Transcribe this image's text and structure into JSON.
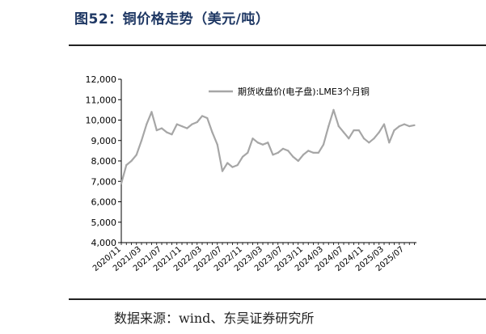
{
  "figure": {
    "title": "图52：铜价格走势（美元/吨）",
    "source": "数据来源：wind、东吴证券研究所"
  },
  "chart_data": {
    "type": "line",
    "title": "",
    "xlabel": "",
    "ylabel": "",
    "ylim": [
      4000,
      12000
    ],
    "yticks": [
      "4,000",
      "5,000",
      "6,000",
      "7,000",
      "8,000",
      "9,000",
      "10,000",
      "11,000",
      "12,000"
    ],
    "xticks": [
      "2020/11",
      "2021/03",
      "2021/07",
      "2021/11",
      "2022/03",
      "2022/07",
      "2022/11",
      "2023/03",
      "2023/07",
      "2023/11",
      "2024/03",
      "2024/07",
      "2024/11",
      "2025/03",
      "2025/07"
    ],
    "legend_position": "top",
    "grid": false,
    "series": [
      {
        "name": "期货收盘价(电子盘):LME3个月铜",
        "color": "#a6a6a6",
        "x": [
          "2020/11",
          "2020/12",
          "2021/01",
          "2021/02",
          "2021/03",
          "2021/04",
          "2021/05",
          "2021/06",
          "2021/07",
          "2021/08",
          "2021/09",
          "2021/10",
          "2021/11",
          "2021/12",
          "2022/01",
          "2022/02",
          "2022/03",
          "2022/04",
          "2022/05",
          "2022/06",
          "2022/07",
          "2022/08",
          "2022/09",
          "2022/10",
          "2022/11",
          "2022/12",
          "2023/01",
          "2023/02",
          "2023/03",
          "2023/04",
          "2023/05",
          "2023/06",
          "2023/07",
          "2023/08",
          "2023/09",
          "2023/10",
          "2023/11",
          "2023/12",
          "2024/01",
          "2024/02",
          "2024/03",
          "2024/04",
          "2024/05",
          "2024/06",
          "2024/07",
          "2024/08",
          "2024/09",
          "2024/10",
          "2024/11",
          "2024/12",
          "2025/01",
          "2025/02",
          "2025/03",
          "2025/04",
          "2025/05",
          "2025/06",
          "2025/07",
          "2025/08",
          "2025/09"
        ],
        "values": [
          6900,
          7800,
          8000,
          8300,
          9000,
          9800,
          10400,
          9500,
          9600,
          9400,
          9300,
          9800,
          9700,
          9600,
          9800,
          9900,
          10200,
          10100,
          9400,
          8800,
          7500,
          7900,
          7700,
          7800,
          8200,
          8400,
          9100,
          8900,
          8800,
          8900,
          8300,
          8400,
          8600,
          8500,
          8200,
          8000,
          8300,
          8500,
          8400,
          8400,
          8800,
          9700,
          10500,
          9700,
          9400,
          9100,
          9500,
          9500,
          9100,
          8900,
          9100,
          9400,
          9800,
          8900,
          9500,
          9700,
          9800,
          9700,
          9750
        ]
      }
    ]
  }
}
